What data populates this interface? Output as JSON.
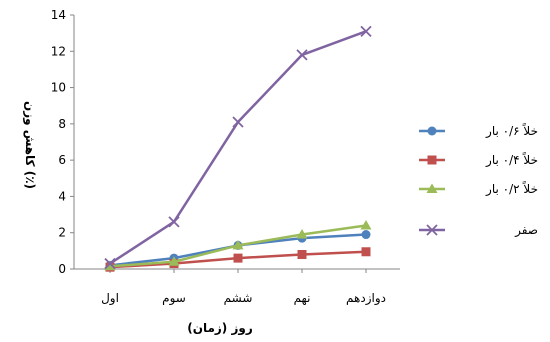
{
  "chart_data": {
    "type": "line",
    "title": "",
    "xlabel": "روز (زمان)",
    "ylabel": "کاهش وزن (٪)",
    "categories": [
      "اول",
      "سوم",
      "ششم",
      "نهم",
      "دوازدهم"
    ],
    "ylim": [
      0,
      14
    ],
    "yticks": [
      0,
      2,
      4,
      6,
      8,
      10,
      12,
      14
    ],
    "grid": false,
    "legend_position": "right",
    "series": [
      {
        "name": "خلاً ۰/۶ بار",
        "values": [
          0.2,
          0.6,
          1.3,
          1.7,
          1.9
        ],
        "color": "#4f81bd",
        "marker": "circle"
      },
      {
        "name": "خلاً ۰/۴ بار",
        "values": [
          0.1,
          0.3,
          0.6,
          0.8,
          0.95
        ],
        "color": "#c0504d",
        "marker": "square"
      },
      {
        "name": "خلاً ۰/۲ بار",
        "values": [
          0.15,
          0.4,
          1.3,
          1.9,
          2.4
        ],
        "color": "#9bbb59",
        "marker": "triangle"
      },
      {
        "name": "صفر",
        "values": [
          0.3,
          2.6,
          8.1,
          11.8,
          13.1
        ],
        "color": "#8064a2",
        "marker": "x"
      }
    ]
  }
}
